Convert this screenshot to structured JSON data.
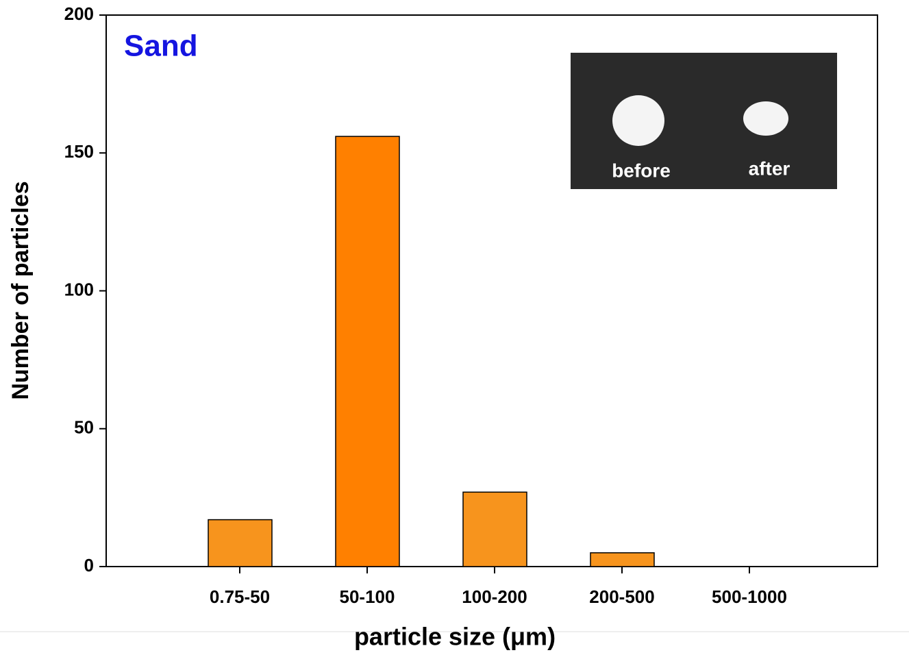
{
  "chart_data": {
    "type": "bar",
    "title": "Sand",
    "x_label": "particle size (μm)",
    "y_label": "Number of particles",
    "categories": [
      "0.75-50",
      "50-100",
      "100-200",
      "200-500",
      "500-1000"
    ],
    "values": [
      17,
      156,
      27,
      5,
      0
    ],
    "colors": [
      "#f7941d",
      "#ff8000",
      "#f7941d",
      "#f7941d",
      "#f7941d"
    ],
    "ylim": [
      0,
      200
    ],
    "yticks": [
      0,
      50,
      100,
      150,
      200
    ],
    "inset_labels": [
      "before",
      "after"
    ]
  }
}
